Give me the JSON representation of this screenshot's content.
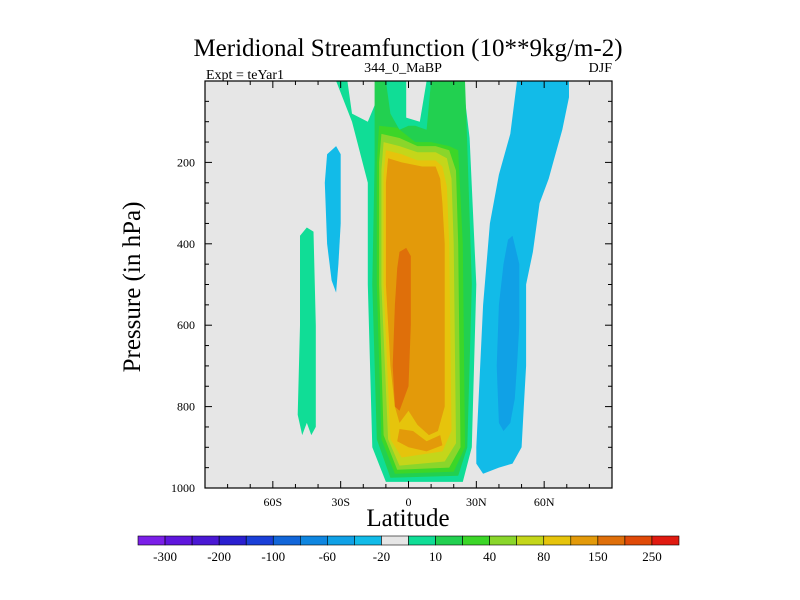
{
  "chart_data": {
    "type": "contour",
    "title": "Meridional Streamfunction (10**9kg/m-2)",
    "left_string": "Expt = teYar1",
    "center_string": "344_0_MaBP",
    "right_string": "DJF",
    "xlabel": "Latitude",
    "ylabel": "Pressure (in hPa)",
    "xlim": [
      -90,
      90
    ],
    "ylim": [
      1000,
      0
    ],
    "x_ticks": [
      {
        "value": -60,
        "label": "60S"
      },
      {
        "value": -30,
        "label": "30S"
      },
      {
        "value": 0,
        "label": "0"
      },
      {
        "value": 30,
        "label": "30N"
      },
      {
        "value": 60,
        "label": "60N"
      }
    ],
    "y_ticks": [
      200,
      400,
      600,
      800,
      1000
    ],
    "colorbar": {
      "levels": [
        -300,
        -250,
        -200,
        -150,
        -100,
        -80,
        -60,
        -40,
        -20,
        -10,
        10,
        20,
        40,
        60,
        80,
        100,
        150,
        200,
        250,
        300
      ],
      "tick_labels": [
        "-300",
        "-200",
        "-100",
        "-60",
        "-20",
        "10",
        "40",
        "80",
        "150",
        "250"
      ],
      "colors": [
        "#7b1fe8",
        "#5f16dd",
        "#4a18d4",
        "#2a1fd0",
        "#1a3fd8",
        "#1266d9",
        "#0f86e0",
        "#10a1e6",
        "#12bbe8",
        "#e6e6e6",
        "#10dd96",
        "#22d050",
        "#3cd628",
        "#8ad62b",
        "#c4d61a",
        "#e6c40c",
        "#e39a0a",
        "#df6f0a",
        "#e04a08",
        "#e01a10"
      ]
    },
    "contour_regions": [
      {
        "level": "10",
        "color": "#10dd96",
        "polygon": [
          [
            -32,
            0
          ],
          [
            -27,
            0
          ],
          [
            -25,
            80
          ],
          [
            -18,
            100
          ],
          [
            -15,
            60
          ],
          [
            -11,
            0
          ],
          [
            -1,
            0
          ],
          [
            -1,
            90
          ],
          [
            5,
            100
          ],
          [
            8,
            0
          ],
          [
            24,
            0
          ],
          [
            27,
            140
          ],
          [
            30,
            500
          ],
          [
            28,
            900
          ],
          [
            24,
            985
          ],
          [
            -10,
            985
          ],
          [
            -16,
            900
          ],
          [
            -18,
            500
          ],
          [
            -18,
            250
          ],
          [
            -25,
            100
          ]
        ]
      },
      {
        "level": "10",
        "color": "#10dd96",
        "polygon": [
          [
            -48,
            380
          ],
          [
            -45,
            360
          ],
          [
            -42,
            370
          ],
          [
            -41,
            600
          ],
          [
            -41,
            850
          ],
          [
            -43,
            870
          ],
          [
            -45,
            840
          ],
          [
            -47,
            870
          ],
          [
            -49,
            820
          ],
          [
            -48,
            600
          ]
        ]
      },
      {
        "level": "40",
        "color": "#22d050",
        "polygon": [
          [
            -15,
            0
          ],
          [
            -10,
            0
          ],
          [
            -8,
            80
          ],
          [
            -4,
            120
          ],
          [
            0,
            110
          ],
          [
            3,
            110
          ],
          [
            8,
            120
          ],
          [
            10,
            0
          ],
          [
            25,
            0
          ],
          [
            26,
            160
          ],
          [
            28,
            500
          ],
          [
            26,
            900
          ],
          [
            22,
            970
          ],
          [
            -8,
            975
          ],
          [
            -14,
            880
          ],
          [
            -16,
            500
          ],
          [
            -15,
            200
          ]
        ]
      },
      {
        "level": "60",
        "color": "#3cd628",
        "polygon": [
          [
            -13,
            110
          ],
          [
            -5,
            115
          ],
          [
            3,
            150
          ],
          [
            10,
            150
          ],
          [
            18,
            160
          ],
          [
            22,
            170
          ],
          [
            24,
            400
          ],
          [
            25,
            900
          ],
          [
            20,
            960
          ],
          [
            -6,
            965
          ],
          [
            -12,
            880
          ],
          [
            -14,
            500
          ],
          [
            -14,
            200
          ]
        ]
      },
      {
        "level": "80",
        "color": "#8ad62b",
        "polygon": [
          [
            -12,
            130
          ],
          [
            -4,
            140
          ],
          [
            4,
            160
          ],
          [
            12,
            160
          ],
          [
            18,
            170
          ],
          [
            21,
            220
          ],
          [
            22,
            400
          ],
          [
            23,
            900
          ],
          [
            18,
            950
          ],
          [
            -5,
            955
          ],
          [
            -11,
            870
          ],
          [
            -13,
            500
          ],
          [
            -13,
            200
          ]
        ]
      },
      {
        "level": "100",
        "color": "#c4d61a",
        "polygon": [
          [
            -11,
            150
          ],
          [
            -4,
            160
          ],
          [
            4,
            175
          ],
          [
            12,
            175
          ],
          [
            17,
            190
          ],
          [
            19,
            240
          ],
          [
            20,
            400
          ],
          [
            21,
            890
          ],
          [
            16,
            935
          ],
          [
            -4,
            945
          ],
          [
            -9,
            880
          ],
          [
            -12,
            500
          ],
          [
            -12,
            220
          ]
        ]
      },
      {
        "level": "150",
        "color": "#e6c40c",
        "polygon": [
          [
            -10,
            170
          ],
          [
            -3,
            180
          ],
          [
            4,
            195
          ],
          [
            12,
            195
          ],
          [
            15,
            210
          ],
          [
            17,
            260
          ],
          [
            18,
            400
          ],
          [
            19,
            860
          ],
          [
            15,
            910
          ],
          [
            -3,
            925
          ],
          [
            -8,
            880
          ],
          [
            -11,
            500
          ],
          [
            -11,
            230
          ]
        ]
      },
      {
        "level": "200",
        "color": "#e39a0a",
        "polygon": [
          [
            -9,
            190
          ],
          [
            -3,
            200
          ],
          [
            6,
            210
          ],
          [
            12,
            210
          ],
          [
            14,
            240
          ],
          [
            15,
            300
          ],
          [
            16,
            400
          ],
          [
            16,
            800
          ],
          [
            13,
            860
          ],
          [
            9,
            870
          ],
          [
            4,
            845
          ],
          [
            0,
            810
          ],
          [
            -4,
            840
          ],
          [
            -6,
            800
          ],
          [
            -8,
            700
          ],
          [
            -10,
            500
          ],
          [
            -10,
            250
          ]
        ]
      },
      {
        "level": "200",
        "color": "#e39a0a",
        "polygon": [
          [
            -4,
            855
          ],
          [
            2,
            860
          ],
          [
            8,
            885
          ],
          [
            14,
            870
          ],
          [
            15,
            895
          ],
          [
            8,
            910
          ],
          [
            0,
            900
          ],
          [
            -5,
            885
          ]
        ]
      },
      {
        "level": "250",
        "color": "#df6f0a",
        "polygon": [
          [
            -4,
            420
          ],
          [
            -1,
            410
          ],
          [
            1,
            430
          ],
          [
            1,
            600
          ],
          [
            0,
            750
          ],
          [
            -2,
            780
          ],
          [
            -4,
            810
          ],
          [
            -6,
            800
          ],
          [
            -7,
            700
          ],
          [
            -6,
            550
          ],
          [
            -5,
            460
          ]
        ]
      },
      {
        "level": "-10",
        "color": "#12bbe8",
        "polygon": [
          [
            -36,
            180
          ],
          [
            -32,
            160
          ],
          [
            -30,
            180
          ],
          [
            -30,
            350
          ],
          [
            -31,
            450
          ],
          [
            -32,
            520
          ],
          [
            -34,
            490
          ],
          [
            -36,
            400
          ],
          [
            -37,
            250
          ]
        ]
      },
      {
        "level": "-10",
        "color": "#12bbe8",
        "polygon": [
          [
            48,
            0
          ],
          [
            71,
            0
          ],
          [
            71,
            40
          ],
          [
            68,
            120
          ],
          [
            64,
            200
          ],
          [
            62,
            240
          ],
          [
            58,
            300
          ],
          [
            55,
            420
          ],
          [
            52,
            500
          ],
          [
            52,
            700
          ],
          [
            51,
            800
          ],
          [
            50,
            900
          ],
          [
            46,
            940
          ],
          [
            40,
            950
          ],
          [
            33,
            965
          ],
          [
            30,
            940
          ],
          [
            30,
            900
          ],
          [
            33,
            550
          ],
          [
            36,
            350
          ],
          [
            40,
            230
          ],
          [
            45,
            130
          ]
        ]
      },
      {
        "level": "-20",
        "color": "#10a1e6",
        "polygon": [
          [
            44,
            390
          ],
          [
            46,
            380
          ],
          [
            49,
            450
          ],
          [
            49,
            600
          ],
          [
            48,
            700
          ],
          [
            47,
            780
          ],
          [
            45,
            840
          ],
          [
            42,
            860
          ],
          [
            40,
            840
          ],
          [
            39,
            700
          ],
          [
            40,
            550
          ],
          [
            42,
            450
          ]
        ]
      }
    ]
  }
}
